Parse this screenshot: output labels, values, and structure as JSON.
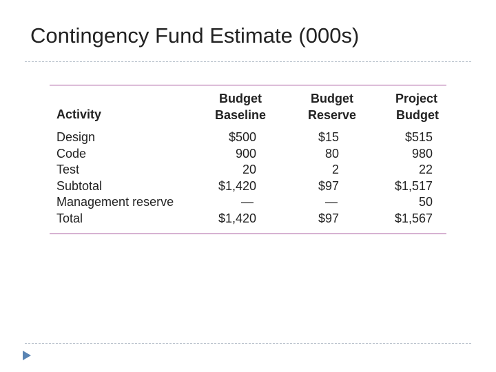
{
  "slide": {
    "title": "Contingency Fund Estimate (000s)"
  },
  "table": {
    "headers": {
      "activity": "Activity",
      "baseline_line1": "Budget",
      "baseline_line2": "Baseline",
      "reserve_line1": "Budget",
      "reserve_line2": "Reserve",
      "project_line1": "Project",
      "project_line2": "Budget"
    },
    "rows": [
      {
        "activity": "Design",
        "baseline": "$500",
        "reserve": "$15",
        "project": "$515"
      },
      {
        "activity": "Code",
        "baseline": "900",
        "reserve": "80",
        "project": "980"
      },
      {
        "activity": "Test",
        "baseline": "20",
        "reserve": "2",
        "project": "22"
      },
      {
        "activity": "Subtotal",
        "baseline": "$1,420",
        "reserve": "$97",
        "project": "$1,517"
      },
      {
        "activity": "Management reserve",
        "baseline": "—",
        "reserve": "—",
        "project": "50"
      },
      {
        "activity": "Total",
        "baseline": "$1,420",
        "reserve": "$97",
        "project": "$1,567"
      }
    ]
  },
  "colors": {
    "rule": "#a4519a",
    "divider": "#b9c2cc",
    "bullet": "#5a84b3"
  },
  "icons": {
    "bullet": "bullet-arrow-icon"
  }
}
